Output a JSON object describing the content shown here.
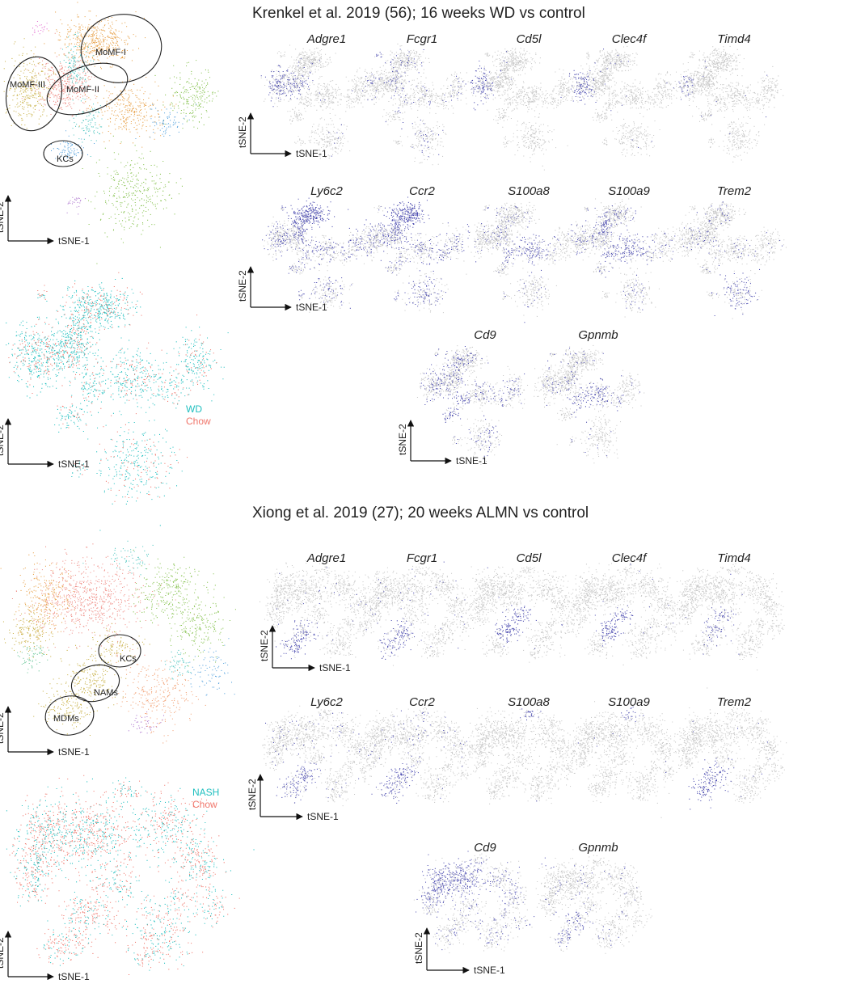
{
  "chart_data": [
    {
      "type": "scatter",
      "panel": "krenkel-clusters",
      "title": "Krenkel et al. 2019 (56); 16 weeks WD vs control",
      "xlabel": "tSNE-1",
      "ylabel": "tSNE-2",
      "annotations": [
        "MoMF-I",
        "MoMF-II",
        "MoMF-III",
        "KCs"
      ],
      "colors": {
        "orange": "#e8a24b",
        "salmon": "#ef8d86",
        "olive": "#c9b24a",
        "green": "#86c24f",
        "cyan": "#4fc6c0",
        "blue": "#5aa5df",
        "purple": "#b07ad0",
        "pink": "#e36bd1"
      }
    },
    {
      "type": "scatter",
      "panel": "krenkel-condition",
      "xlabel": "tSNE-1",
      "ylabel": "tSNE-2",
      "legend": [
        {
          "name": "WD",
          "color": "#1fbfbf"
        },
        {
          "name": "Chow",
          "color": "#f0766b"
        }
      ]
    },
    {
      "type": "scatter",
      "panel": "krenkel-gene-expression",
      "series": [
        "Adgre1",
        "Fcgr1",
        "Cd5l",
        "Clec4f",
        "Timd4",
        "Ly6c2",
        "Ccr2",
        "S100a8",
        "S100a9",
        "Trem2",
        "Cd9",
        "Gpnmb"
      ],
      "xlabel": "tSNE-1",
      "ylabel": "tSNE-2"
    },
    {
      "type": "scatter",
      "panel": "xiong-clusters",
      "title": "Xiong et al. 2019 (27); 20 weeks ALMN vs control",
      "xlabel": "tSNE-1",
      "ylabel": "tSNE-2",
      "annotations": [
        "KCs",
        "NAMs",
        "MDMs"
      ]
    },
    {
      "type": "scatter",
      "panel": "xiong-condition",
      "xlabel": "tSNE-1",
      "ylabel": "tSNE-2",
      "legend": [
        {
          "name": "NASH",
          "color": "#1fbfbf"
        },
        {
          "name": "Chow",
          "color": "#f0766b"
        }
      ]
    },
    {
      "type": "scatter",
      "panel": "xiong-gene-expression",
      "series": [
        "Adgre1",
        "Fcgr1",
        "Cd5l",
        "Clec4f",
        "Timd4",
        "Ly6c2",
        "Ccr2",
        "S100a8",
        "S100a9",
        "Trem2",
        "Cd9",
        "Gpnmb"
      ],
      "xlabel": "tSNE-1",
      "ylabel": "tSNE-2"
    }
  ],
  "titles": {
    "krenkel": "Krenkel et al. 2019 (56); 16 weeks WD vs control",
    "xiong": "Xiong et al. 2019 (27); 20 weeks ALMN vs control"
  },
  "axis": {
    "x": "tSNE-1",
    "y": "tSNE-2"
  },
  "krenkel": {
    "genes": [
      "Adgre1",
      "Fcgr1",
      "Cd5l",
      "Clec4f",
      "Timd4",
      "Ly6c2",
      "Ccr2",
      "S100a8",
      "S100a9",
      "Trem2",
      "Cd9",
      "Gpnmb"
    ],
    "clusters": [
      "MoMF-I",
      "MoMF-II",
      "MoMF-III",
      "KCs"
    ],
    "legend": [
      "WD",
      "Chow"
    ]
  },
  "xiong": {
    "genes": [
      "Adgre1",
      "Fcgr1",
      "Cd5l",
      "Clec4f",
      "Timd4",
      "Ly6c2",
      "Ccr2",
      "S100a8",
      "S100a9",
      "Trem2",
      "Cd9",
      "Gpnmb"
    ],
    "clusters": [
      "KCs",
      "NAMs",
      "MDMs"
    ],
    "legend": [
      "NASH",
      "Chow"
    ]
  },
  "colors": {
    "grey": "#c8c8c8",
    "expr": "#4b4bb0",
    "wd": "#1fbfbf",
    "chow": "#f0766b"
  }
}
